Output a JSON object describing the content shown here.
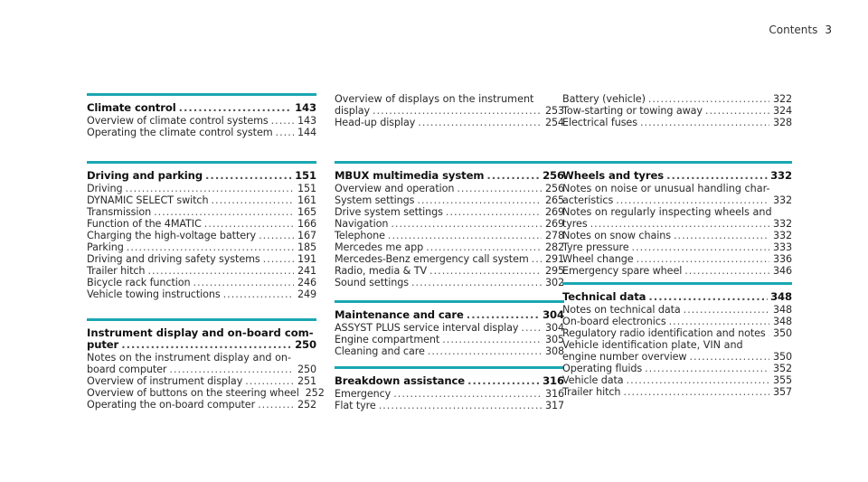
{
  "header": {
    "title": "Contents",
    "page": "3"
  },
  "col1": [
    {
      "heading": {
        "title": "Climate control",
        "page": "143"
      },
      "entries": [
        {
          "title": "Overview of climate control systems",
          "page": "143"
        },
        {
          "title": "Operating the climate control system",
          "page": "144"
        }
      ]
    },
    {
      "heading": {
        "title": "Driving and parking",
        "page": "151"
      },
      "entries": [
        {
          "title": "Driving",
          "page": "151"
        },
        {
          "title": "DYNAMIC SELECT switch",
          "page": "161"
        },
        {
          "title": "Transmission",
          "page": "165"
        },
        {
          "title": "Function of the 4MATIC",
          "page": "166"
        },
        {
          "title": "Charging the high-voltage battery",
          "page": "167"
        },
        {
          "title": "Parking",
          "page": "185"
        },
        {
          "title": "Driving and driving safety systems",
          "page": "191"
        },
        {
          "title": "Trailer hitch",
          "page": "241"
        },
        {
          "title": "Bicycle rack function",
          "page": "246"
        },
        {
          "title": "Vehicle towing instructions",
          "page": "249"
        }
      ]
    },
    {
      "heading": {
        "line1": "Instrument display and on-board com-",
        "title": "puter",
        "page": "250"
      },
      "entries": [
        {
          "line1": "Notes on the instrument display and on-",
          "title": "board computer",
          "page": "250"
        },
        {
          "title": "Overview of instrument display",
          "page": "251"
        },
        {
          "title": "Overview of buttons on the steering wheel",
          "page": "252"
        },
        {
          "title": "Operating the on-board computer",
          "page": "252"
        }
      ]
    }
  ],
  "col2": [
    {
      "entries": [
        {
          "line1": "Overview of displays on the instrument",
          "title": "display",
          "page": "253"
        },
        {
          "title": "Head-up display",
          "page": "254"
        }
      ]
    },
    {
      "heading": {
        "title": "MBUX multimedia system",
        "page": "256"
      },
      "entries": [
        {
          "title": "Overview and operation",
          "page": "256"
        },
        {
          "title": "System settings",
          "page": "265"
        },
        {
          "title": "Drive system settings",
          "page": "269"
        },
        {
          "title": "Navigation",
          "page": "269"
        },
        {
          "title": "Telephone",
          "page": "278"
        },
        {
          "title": "Mercedes me app",
          "page": "282"
        },
        {
          "title": "Mercedes-Benz emergency call system",
          "page": "291"
        },
        {
          "title": "Radio, media & TV",
          "page": "295"
        },
        {
          "title": "Sound settings",
          "page": "302"
        }
      ]
    },
    {
      "heading": {
        "title": "Maintenance and care",
        "page": "304"
      },
      "entries": [
        {
          "title": "ASSYST PLUS service interval display",
          "page": "304"
        },
        {
          "title": "Engine compartment",
          "page": "305"
        },
        {
          "title": "Cleaning and care",
          "page": "308"
        }
      ]
    },
    {
      "heading": {
        "title": "Breakdown assistance",
        "page": "316"
      },
      "entries": [
        {
          "title": "Emergency",
          "page": "316"
        },
        {
          "title": "Flat tyre",
          "page": "317"
        }
      ]
    }
  ],
  "col3": [
    {
      "entries": [
        {
          "title": "Battery (vehicle)",
          "page": "322"
        },
        {
          "title": "Tow-starting or towing away",
          "page": "324"
        },
        {
          "title": "Electrical fuses",
          "page": "328"
        }
      ]
    },
    {
      "heading": {
        "title": "Wheels and tyres",
        "page": "332"
      },
      "entries": [
        {
          "line1": "Notes on noise or unusual handling char-",
          "title": "acteristics",
          "page": "332"
        },
        {
          "line1": "Notes on regularly inspecting wheels and",
          "title": "tyres",
          "page": "332"
        },
        {
          "title": "Notes on snow chains",
          "page": "332"
        },
        {
          "title": "Tyre pressure",
          "page": "333"
        },
        {
          "title": "Wheel change",
          "page": "336"
        },
        {
          "title": "Emergency spare wheel",
          "page": "346"
        }
      ]
    },
    {
      "heading": {
        "title": "Technical data",
        "page": "348"
      },
      "entries": [
        {
          "title": "Notes on technical data",
          "page": "348"
        },
        {
          "title": "On-board electronics",
          "page": "348"
        },
        {
          "title": "Regulatory radio identification and notes",
          "page": "350"
        },
        {
          "line1": "Vehicle identification plate, VIN and",
          "title": "engine number overview",
          "page": "350"
        },
        {
          "title": "Operating fluids",
          "page": "352"
        },
        {
          "title": "Vehicle data",
          "page": "355"
        },
        {
          "title": "Trailer hitch",
          "page": "357"
        }
      ]
    }
  ]
}
